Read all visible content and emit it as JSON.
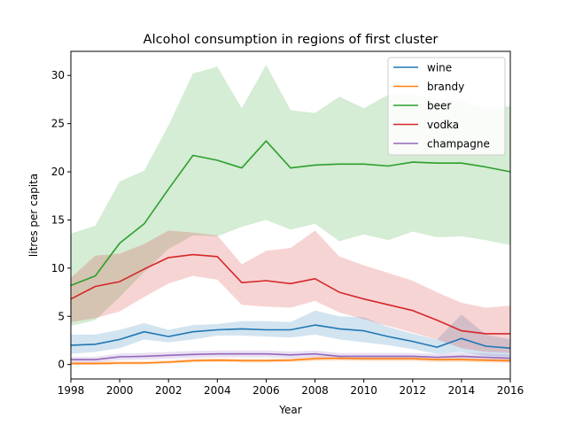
{
  "chart_data": {
    "type": "line",
    "title": "Alcohol consumption in regions of first cluster",
    "xlabel": "Year",
    "ylabel": "litres per capita",
    "xlim": [
      1998,
      2016
    ],
    "ylim": [
      -1.5,
      32.5
    ],
    "xticks": [
      1998,
      2000,
      2002,
      2004,
      2006,
      2008,
      2010,
      2012,
      2014,
      2016
    ],
    "yticks": [
      0,
      5,
      10,
      15,
      20,
      25,
      30
    ],
    "grid": false,
    "legend_position": "top-right",
    "x": [
      1998,
      1999,
      2000,
      2001,
      2002,
      2003,
      2004,
      2005,
      2006,
      2007,
      2008,
      2009,
      2010,
      2011,
      2012,
      2013,
      2014,
      2015,
      2016
    ],
    "series": [
      {
        "name": "wine",
        "color": "#1f77b4",
        "values": [
          2.0,
          2.1,
          2.6,
          3.4,
          2.9,
          3.4,
          3.6,
          3.7,
          3.6,
          3.6,
          4.1,
          3.7,
          3.5,
          2.9,
          2.4,
          1.8,
          2.7,
          1.9,
          1.7
        ],
        "lower": [
          1.1,
          1.3,
          1.7,
          2.6,
          2.3,
          2.6,
          3.0,
          3.0,
          2.9,
          2.8,
          3.1,
          2.6,
          2.3,
          2.0,
          1.6,
          1.1,
          1.3,
          0.9,
          0.8
        ],
        "upper": [
          3.1,
          3.1,
          3.6,
          4.3,
          3.6,
          4.1,
          4.2,
          4.5,
          4.5,
          4.4,
          5.6,
          5.0,
          4.9,
          3.9,
          3.2,
          2.6,
          5.2,
          3.1,
          2.6
        ]
      },
      {
        "name": "brandy",
        "color": "#ff7f0e",
        "values": [
          0.1,
          0.1,
          0.15,
          0.15,
          0.25,
          0.4,
          0.45,
          0.4,
          0.4,
          0.45,
          0.6,
          0.65,
          0.6,
          0.6,
          0.6,
          0.5,
          0.5,
          0.45,
          0.4
        ],
        "lower": [
          -0.05,
          -0.05,
          0.0,
          0.0,
          0.1,
          0.2,
          0.25,
          0.2,
          0.2,
          0.25,
          0.35,
          0.4,
          0.35,
          0.35,
          0.35,
          0.25,
          0.25,
          0.2,
          0.15
        ],
        "upper": [
          0.3,
          0.3,
          0.35,
          0.35,
          0.45,
          0.6,
          0.65,
          0.6,
          0.6,
          0.65,
          0.85,
          0.9,
          0.85,
          0.85,
          0.85,
          0.75,
          0.75,
          0.7,
          0.65
        ]
      },
      {
        "name": "beer",
        "color": "#2ca02c",
        "values": [
          8.2,
          9.2,
          12.6,
          14.6,
          18.2,
          21.7,
          21.2,
          20.4,
          23.2,
          20.4,
          20.7,
          20.8,
          20.8,
          20.6,
          21.0,
          20.9,
          20.9,
          20.5,
          20.0
        ],
        "lower": [
          4.0,
          4.6,
          7.0,
          9.6,
          12.0,
          13.4,
          13.3,
          14.3,
          15.0,
          14.0,
          14.6,
          12.8,
          13.5,
          12.9,
          13.8,
          13.2,
          13.3,
          12.9,
          12.4
        ],
        "upper": [
          13.6,
          14.4,
          19.0,
          20.1,
          24.8,
          30.2,
          30.9,
          26.6,
          31.1,
          26.4,
          26.1,
          27.8,
          26.6,
          28.0,
          28.0,
          27.6,
          27.4,
          26.5,
          26.8
        ]
      },
      {
        "name": "vodka",
        "color": "#d62728",
        "values": [
          6.8,
          8.1,
          8.6,
          9.9,
          11.1,
          11.4,
          11.2,
          8.5,
          8.7,
          8.4,
          8.9,
          7.5,
          6.8,
          6.2,
          5.6,
          4.6,
          3.5,
          3.2,
          3.2
        ],
        "lower": [
          4.4,
          4.8,
          5.5,
          7.0,
          8.4,
          9.2,
          8.8,
          6.2,
          6.0,
          5.9,
          6.6,
          5.4,
          4.7,
          4.0,
          3.3,
          2.6,
          1.7,
          1.3,
          1.2
        ],
        "upper": [
          9.0,
          11.3,
          11.5,
          12.5,
          13.9,
          13.7,
          13.4,
          10.4,
          11.8,
          12.1,
          13.9,
          11.2,
          10.3,
          9.5,
          8.7,
          7.5,
          6.4,
          5.9,
          6.1
        ]
      },
      {
        "name": "champagne",
        "color": "#9467bd",
        "values": [
          0.5,
          0.5,
          0.8,
          0.85,
          0.95,
          1.05,
          1.1,
          1.1,
          1.1,
          1.0,
          1.1,
          0.85,
          0.85,
          0.85,
          0.85,
          0.75,
          0.85,
          0.75,
          0.65
        ],
        "lower": [
          0.2,
          0.2,
          0.45,
          0.5,
          0.6,
          0.7,
          0.75,
          0.75,
          0.75,
          0.65,
          0.75,
          0.5,
          0.5,
          0.5,
          0.5,
          0.4,
          0.45,
          0.35,
          0.25
        ],
        "upper": [
          0.8,
          0.8,
          1.15,
          1.2,
          1.3,
          1.4,
          1.45,
          1.45,
          1.45,
          1.35,
          1.45,
          1.2,
          1.2,
          1.2,
          1.2,
          1.1,
          1.25,
          1.15,
          1.05
        ]
      }
    ]
  }
}
